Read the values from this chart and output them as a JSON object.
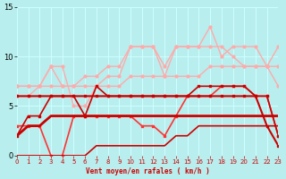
{
  "x": [
    0,
    1,
    2,
    3,
    4,
    5,
    6,
    7,
    8,
    9,
    10,
    11,
    12,
    13,
    14,
    15,
    16,
    17,
    18,
    19,
    20,
    21,
    22,
    23
  ],
  "line_dark_thick": [
    2,
    3,
    3,
    4,
    4,
    4,
    4,
    4,
    4,
    4,
    4,
    4,
    4,
    4,
    4,
    4,
    4,
    4,
    4,
    4,
    4,
    4,
    4,
    4
  ],
  "line_dark_volatile": [
    2,
    4,
    4,
    6,
    6,
    6,
    4,
    7,
    6,
    6,
    6,
    6,
    6,
    6,
    6,
    6,
    7,
    7,
    7,
    7,
    7,
    6,
    6,
    2
  ],
  "line_mid_volatile": [
    3,
    3,
    3,
    0,
    0,
    4,
    4,
    4,
    4,
    4,
    4,
    3,
    3,
    2,
    4,
    6,
    6,
    6,
    7,
    7,
    7,
    6,
    6,
    2
  ],
  "line_light_upper": [
    7,
    7,
    7,
    9,
    9,
    5,
    5,
    7,
    8,
    8,
    11,
    11,
    11,
    8,
    11,
    11,
    11,
    13,
    10,
    11,
    11,
    11,
    9,
    11
  ],
  "line_light_mid": [
    7,
    7,
    7,
    9,
    7,
    7,
    8,
    8,
    9,
    9,
    11,
    11,
    11,
    9,
    11,
    11,
    11,
    11,
    11,
    10,
    9,
    9,
    9,
    9
  ],
  "line_light_low": [
    6,
    6,
    7,
    7,
    7,
    7,
    7,
    7,
    7,
    7,
    8,
    8,
    8,
    8,
    8,
    8,
    8,
    9,
    9,
    9,
    9,
    9,
    9,
    7
  ],
  "line_dark_low": [
    0,
    0,
    0,
    0,
    0,
    0,
    0,
    1,
    1,
    1,
    1,
    1,
    1,
    1,
    2,
    2,
    3,
    3,
    3,
    3,
    3,
    3,
    3,
    3
  ],
  "line_dark_drop": [
    6,
    6,
    6,
    6,
    6,
    6,
    6,
    6,
    6,
    6,
    6,
    6,
    6,
    6,
    6,
    6,
    6,
    6,
    6,
    6,
    6,
    6,
    3,
    1
  ],
  "ylim": [
    0,
    15
  ],
  "xlim": [
    0,
    23
  ],
  "xlabel": "Vent moyen/en rafales ( km/h )",
  "yticks": [
    0,
    5,
    10,
    15
  ],
  "xticks": [
    0,
    1,
    2,
    3,
    4,
    5,
    6,
    7,
    8,
    9,
    10,
    11,
    12,
    13,
    14,
    15,
    16,
    17,
    18,
    19,
    20,
    21,
    22,
    23
  ],
  "bg_color": "#b8eeee",
  "grid_color": "#ccffff",
  "color_dark": "#cc0000",
  "color_mid": "#ff3333",
  "color_light": "#ffaaaa"
}
